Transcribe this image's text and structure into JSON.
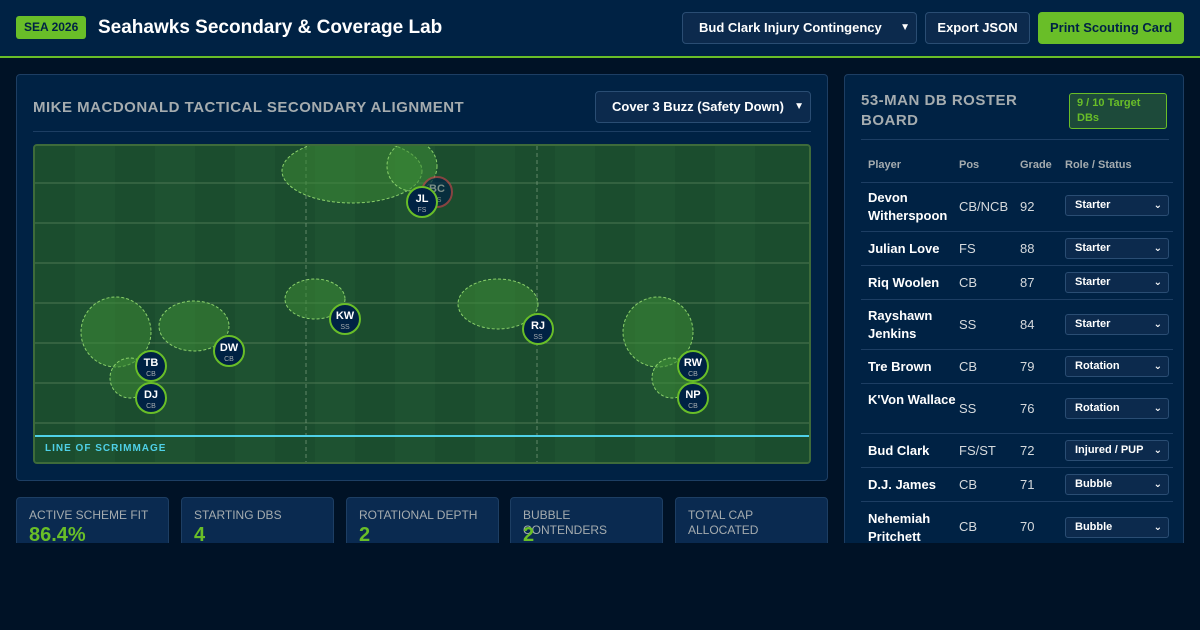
{
  "header": {
    "badge": "SEA 2026",
    "title": "Seahawks Secondary & Coverage Lab",
    "scenario_select": "Bud Clark Injury Contingency",
    "export_label": "Export JSON",
    "print_label": "Print Scouting Card"
  },
  "alignment": {
    "title": "MIKE MACDONALD TACTICAL SECONDARY ALIGNMENT",
    "scheme_select": "Cover 3 Buzz (Safety Down)",
    "los_label": "LINE OF SCRIMMAGE",
    "players": [
      {
        "initials": "BC",
        "pos": "FS",
        "status": "injured"
      },
      {
        "initials": "JL",
        "pos": "FS",
        "status": "active"
      },
      {
        "initials": "KW",
        "pos": "SS",
        "status": "active"
      },
      {
        "initials": "RJ",
        "pos": "SS",
        "status": "active"
      },
      {
        "initials": "DW",
        "pos": "CB",
        "status": "active"
      },
      {
        "initials": "TB",
        "pos": "CB",
        "status": "active"
      },
      {
        "initials": "DJ",
        "pos": "CB",
        "status": "active"
      },
      {
        "initials": "RW",
        "pos": "CB",
        "status": "active"
      },
      {
        "initials": "NP",
        "pos": "CB",
        "status": "active"
      }
    ]
  },
  "kpis": [
    {
      "label": "ACTIVE SCHEME FIT",
      "value": "86.4%"
    },
    {
      "label": "STARTING DBS",
      "value": "4"
    },
    {
      "label": "ROTATIONAL DEPTH",
      "value": "2"
    },
    {
      "label": "BUBBLE CONTENDERS",
      "value": "2"
    },
    {
      "label": "TOTAL CAP ALLOCATED",
      "value": ""
    }
  ],
  "roster": {
    "title": "53-MAN DB ROSTER BOARD",
    "target_badge": "9 / 10 Target DBs",
    "columns": [
      "Player",
      "Pos",
      "Grade",
      "Role / Status"
    ],
    "rows": [
      {
        "name": "Devon Witherspoon",
        "pos": "CB/NCB",
        "grade": "92",
        "role": "Starter"
      },
      {
        "name": "Julian Love",
        "pos": "FS",
        "grade": "88",
        "role": "Starter"
      },
      {
        "name": "Riq Woolen",
        "pos": "CB",
        "grade": "87",
        "role": "Starter"
      },
      {
        "name": "Rayshawn Jenkins",
        "pos": "SS",
        "grade": "84",
        "role": "Starter"
      },
      {
        "name": "Tre Brown",
        "pos": "CB",
        "grade": "79",
        "role": "Rotation"
      },
      {
        "name": "K'Von Wallace",
        "pos": "SS",
        "grade": "76",
        "role": "Rotation"
      },
      {
        "name": "Bud Clark",
        "pos": "FS/ST",
        "grade": "72",
        "role": "Injured / PUP"
      },
      {
        "name": "D.J. James",
        "pos": "CB",
        "grade": "71",
        "role": "Bubble"
      },
      {
        "name": "Nehemiah Pritchett",
        "pos": "CB",
        "grade": "70",
        "role": "Bubble"
      }
    ]
  },
  "colors": {
    "navy": "#002244",
    "action_green": "#69be28",
    "wolf_grey": "#a5acaf",
    "field_green": "#1b4d2e",
    "los_cyan": "#4fd1e8",
    "injured_red": "#b5414a"
  }
}
